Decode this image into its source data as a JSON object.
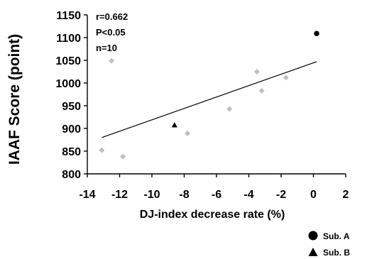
{
  "chart_data": {
    "type": "scatter",
    "title": "",
    "xlabel": "DJ-index decrease rate  (%)",
    "ylabel": "IAAF Score (point)",
    "xlim": [
      -14,
      2
    ],
    "ylim": [
      800,
      1150
    ],
    "x_ticks": [
      "-14",
      "-12",
      "-10",
      "-8",
      "-6",
      "-4",
      "-2",
      "0",
      "2"
    ],
    "y_ticks": [
      "800",
      "850",
      "900",
      "950",
      "1000",
      "1050",
      "1100",
      "1150"
    ],
    "grid": false,
    "annotations": [
      "r=0.662",
      "P<0.05",
      "n=10"
    ],
    "series": [
      {
        "color": "#bfbfbf",
        "marker": "diamond",
        "points": [
          {
            "x": -13.1,
            "y": 852
          },
          {
            "x": -12.5,
            "y": 1049
          },
          {
            "x": -11.8,
            "y": 838
          },
          {
            "x": -7.8,
            "y": 889
          },
          {
            "x": -5.2,
            "y": 943
          },
          {
            "x": -3.5,
            "y": 1025
          },
          {
            "x": -3.2,
            "y": 983
          },
          {
            "x": -1.7,
            "y": 1012
          }
        ]
      },
      {
        "name": "Sub. A",
        "color": "#000000",
        "marker": "circle",
        "points": [
          {
            "x": 0.2,
            "y": 1109
          }
        ]
      },
      {
        "name": "Sub. B",
        "color": "#000000",
        "marker": "triangle",
        "points": [
          {
            "x": -8.6,
            "y": 907
          }
        ]
      }
    ],
    "trendline": {
      "type": "linear",
      "x": [
        -13.1,
        0.2
      ],
      "y": [
        880,
        1047
      ]
    },
    "legend": {
      "position": "bottom-right",
      "entries": [
        "Sub. A",
        "Sub. B"
      ]
    }
  }
}
